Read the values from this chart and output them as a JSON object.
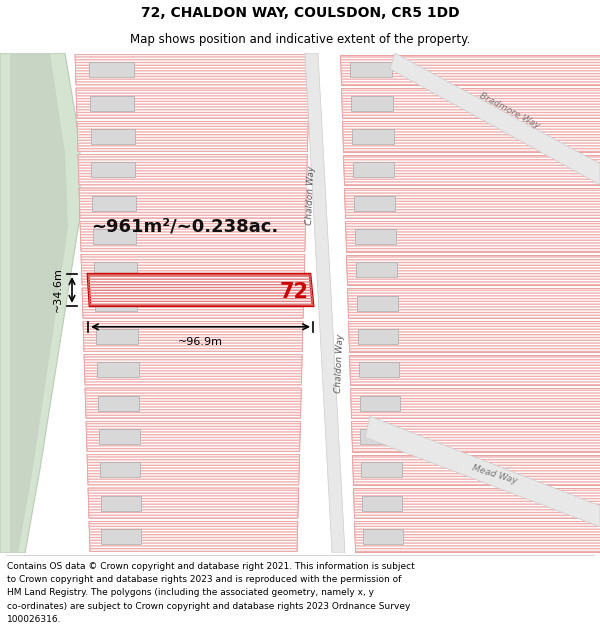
{
  "title_line1": "72, CHALDON WAY, COULSDON, CR5 1DD",
  "title_line2": "Map shows position and indicative extent of the property.",
  "footer_lines": [
    "Contains OS data © Crown copyright and database right 2021. This information is subject",
    "to Crown copyright and database rights 2023 and is reproduced with the permission of",
    "HM Land Registry. The polygons (including the associated geometry, namely x, y",
    "co-ordinates) are subject to Crown copyright and database rights 2023 Ordnance Survey",
    "100026316."
  ],
  "bg_color": "#ffffff",
  "map_bg": "#ffffff",
  "property_fill": "#ffffff",
  "property_edge": "#e08080",
  "hatch_color": "#f0b0b0",
  "road_fill": "#e8e8e8",
  "road_edge": "#cccccc",
  "green_fill": "#d4e4d0",
  "green_edge": "#b8ccb8",
  "gray_fill": "#d8d8d8",
  "gray_edge": "#cccccc",
  "highlight_edge": "#cc0000",
  "highlight_fill": "#ffffff",
  "area_text": "~961m²/~0.238ac.",
  "width_text": "~96.9m",
  "height_text": "~34.6m",
  "number_text": "72",
  "road_label_chaldon1": "Chaldon Way",
  "road_label_chaldon2": "Chaldon Way",
  "road_label_bradmore": "Bradmore Way",
  "road_label_mead": "Mead Way",
  "title_fontsize": 10,
  "subtitle_fontsize": 8.5,
  "area_fontsize": 13,
  "dim_fontsize": 8,
  "road_label_fontsize": 6.5,
  "footer_fontsize": 6.5
}
